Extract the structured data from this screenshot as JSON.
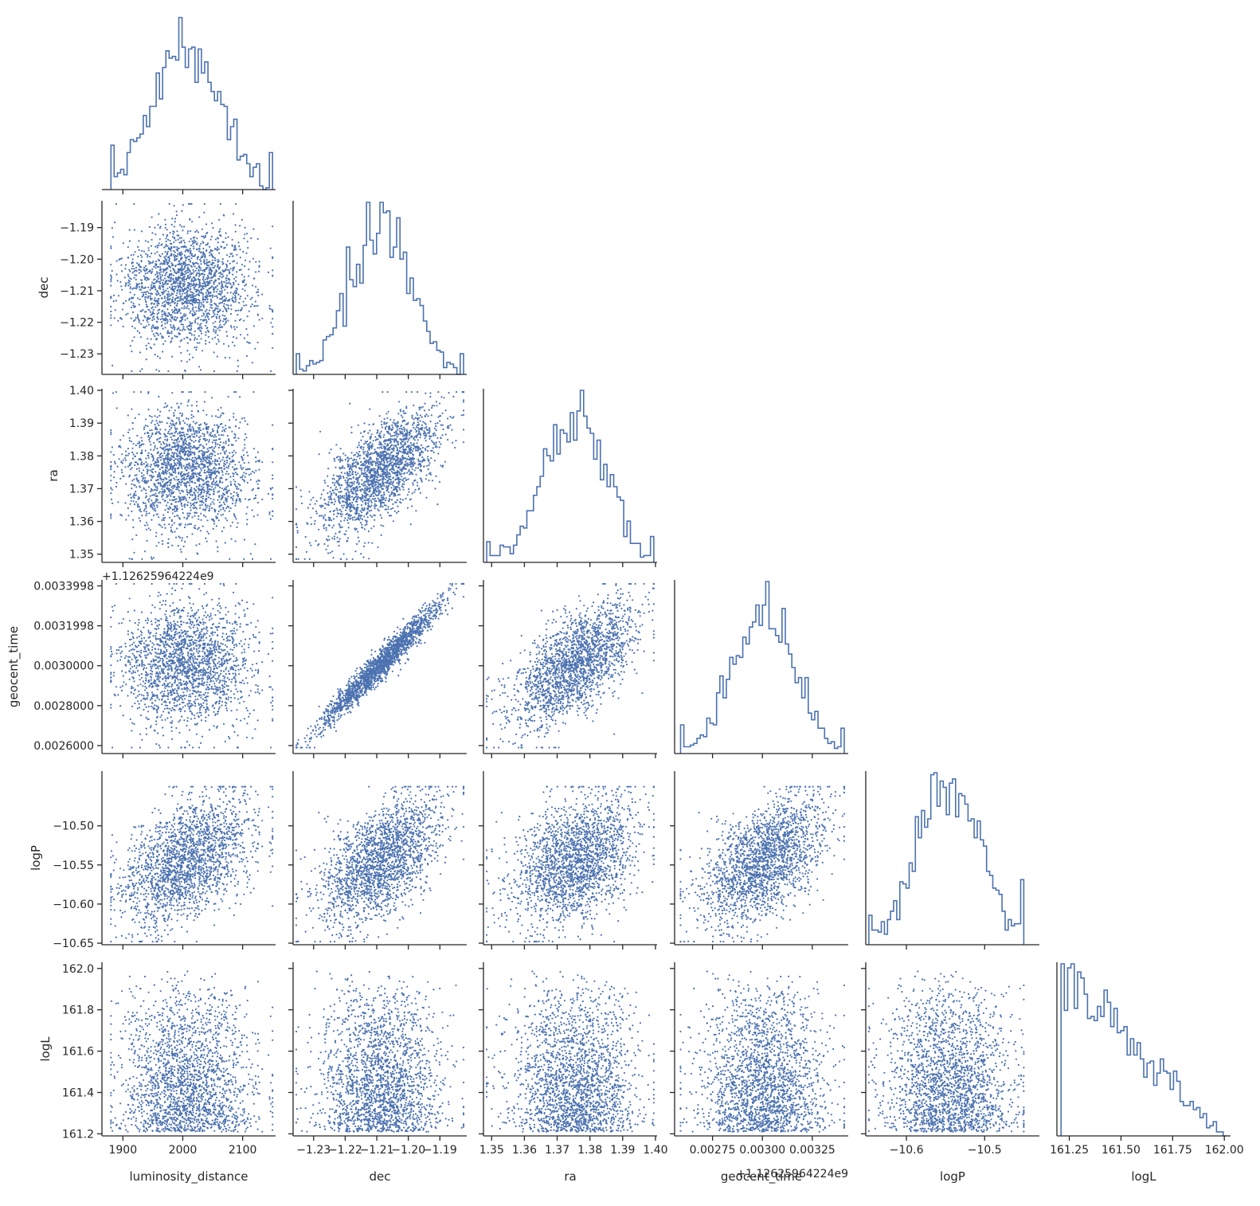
{
  "chart_data": {
    "type": "scatter",
    "title": "",
    "layout": "corner pair plot (histograms on diagonal, scatter below)",
    "grid": false,
    "legend": "none",
    "colors": {
      "marks": "#4c72b0",
      "axes": "#262626"
    },
    "variables": [
      {
        "name": "luminosity_distance",
        "range": [
          1865,
          2155
        ],
        "ticks": [
          1900,
          2000,
          2100
        ],
        "tick_labels": [
          "1900",
          "2000",
          "2100"
        ],
        "mean": 2005,
        "sd": 55,
        "lo": 1880,
        "hi": 2150
      },
      {
        "name": "dec",
        "range": [
          -1.2365,
          -1.1815
        ],
        "ticks": [
          -1.23,
          -1.22,
          -1.21,
          -1.2,
          -1.19
        ],
        "tick_labels": [
          "−1.23",
          "−1.22",
          "−1.21",
          "−1.20",
          "−1.19"
        ],
        "mean": -1.2085,
        "sd": 0.0095,
        "lo": -1.2355,
        "hi": -1.1825
      },
      {
        "name": "ra",
        "range": [
          1.3475,
          1.4005
        ],
        "ticks": [
          1.35,
          1.36,
          1.37,
          1.38,
          1.39,
          1.4
        ],
        "tick_labels": [
          "1.35",
          "1.36",
          "1.37",
          "1.38",
          "1.39",
          "1.40"
        ],
        "mean": 1.3755,
        "sd": 0.0095,
        "lo": 1.3485,
        "hi": 1.3995
      },
      {
        "name": "geocent_time",
        "offset_label": "+1.12625964224e9",
        "range": [
          0.00256,
          0.00343
        ],
        "ticks": [
          0.0026,
          0.0028,
          0.003,
          0.0032,
          0.0034
        ],
        "tick_labels": [
          "0.0026000",
          "0.0028000",
          "0.0030000",
          "0.0031998",
          "0.0033998"
        ],
        "x_ticks": [
          0.00275,
          0.003,
          0.00325
        ],
        "x_tick_labels": [
          "0.00275",
          "0.00300",
          "0.00325"
        ],
        "mean": 0.00301,
        "sd": 0.000155,
        "lo": 0.00259,
        "hi": 0.00341
      },
      {
        "name": "logP",
        "range": [
          -10.652,
          -10.43
        ],
        "ticks": [
          -10.65,
          -10.6,
          -10.55,
          -10.5
        ],
        "tick_labels": [
          "−10.65",
          "−10.60",
          "−10.55",
          "−10.50"
        ],
        "x_ticks": [
          -10.6,
          -10.5
        ],
        "x_tick_labels": [
          "−10.6",
          "−10.5"
        ],
        "mean": -10.545,
        "sd": 0.04,
        "lo": -10.648,
        "hi": -10.45
      },
      {
        "name": "logL",
        "range": [
          161.19,
          162.03
        ],
        "ticks": [
          161.2,
          161.4,
          161.6,
          161.8,
          162.0
        ],
        "tick_labels": [
          "161.2",
          "161.4",
          "161.6",
          "161.8",
          "162.0"
        ],
        "x_ticks": [
          161.25,
          161.5,
          161.75,
          162.0
        ],
        "x_tick_labels": [
          "161.25",
          "161.50",
          "161.75",
          "162.00"
        ],
        "lo": 161.21,
        "hi": 162.01
      }
    ],
    "correlations": [
      [
        1.0,
        0.0,
        0.0,
        0.0,
        0.6,
        0.0
      ],
      [
        0.0,
        1.0,
        0.65,
        0.97,
        0.7,
        0.0
      ],
      [
        0.0,
        0.65,
        1.0,
        0.62,
        0.45,
        0.0
      ],
      [
        0.0,
        0.97,
        0.62,
        1.0,
        0.7,
        0.0
      ],
      [
        0.6,
        0.7,
        0.45,
        0.7,
        1.0,
        0.0
      ],
      [
        0.0,
        0.0,
        0.0,
        0.0,
        0.0,
        1.0
      ]
    ],
    "n_samples": 2000,
    "hist_bins": 50
  }
}
